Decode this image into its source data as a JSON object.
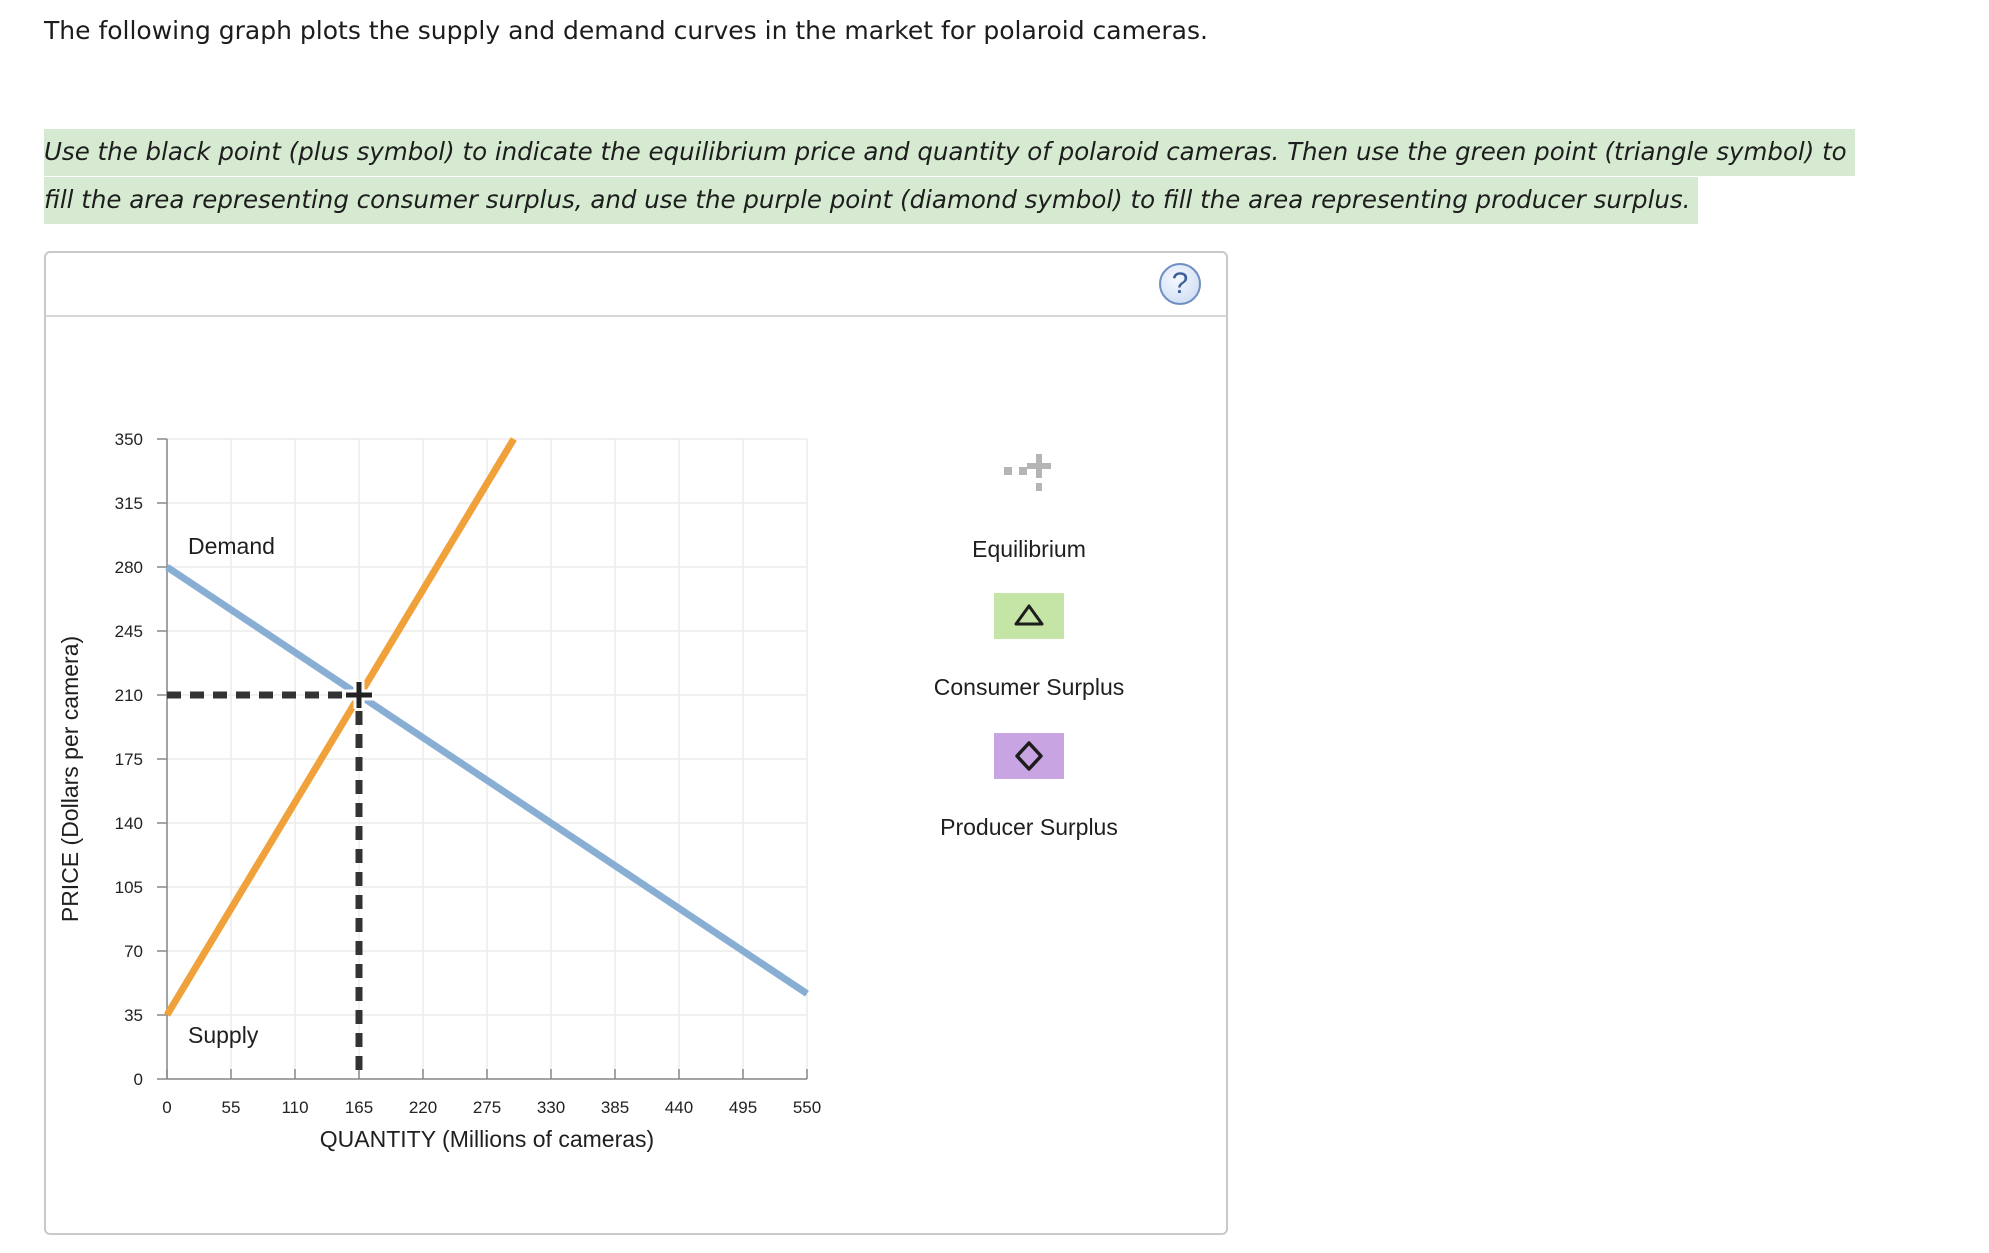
{
  "intro_text": "The following graph plots the supply and demand curves in the market for polaroid cameras.",
  "instructions": "Use the black point (plus symbol) to indicate the equilibrium price and quantity of polaroid cameras. Then use the green point (triangle symbol) to fill the area representing consumer surplus, and use the purple point (diamond symbol) to fill the area representing producer surplus.",
  "help_icon": "?",
  "tools": [
    {
      "name": "equilibrium",
      "label": "Equilibrium",
      "icon": "plus-icon"
    },
    {
      "name": "consumer-surplus",
      "label": "Consumer Surplus",
      "icon": "triangle-icon",
      "color": "#c4e5a5"
    },
    {
      "name": "producer-surplus",
      "label": "Producer Surplus",
      "icon": "diamond-icon",
      "color": "#c8a4e3"
    }
  ],
  "chart_data": {
    "type": "line",
    "xlabel": "QUANTITY (Millions of cameras)",
    "ylabel": "PRICE (Dollars per camera)",
    "xlim": [
      0,
      550
    ],
    "ylim": [
      0,
      350
    ],
    "xticks": [
      0,
      55,
      110,
      165,
      220,
      275,
      330,
      385,
      440,
      495,
      550
    ],
    "yticks": [
      0,
      35,
      70,
      105,
      140,
      175,
      210,
      245,
      280,
      315,
      350
    ],
    "series": [
      {
        "name": "Demand",
        "color": "#89aed4",
        "points": [
          [
            0,
            280
          ],
          [
            550,
            46.7
          ]
        ]
      },
      {
        "name": "Supply",
        "color": "#f0a13a",
        "points": [
          [
            0,
            35
          ],
          [
            298,
            350
          ]
        ]
      }
    ],
    "equilibrium": {
      "x": 165,
      "y": 210
    }
  }
}
